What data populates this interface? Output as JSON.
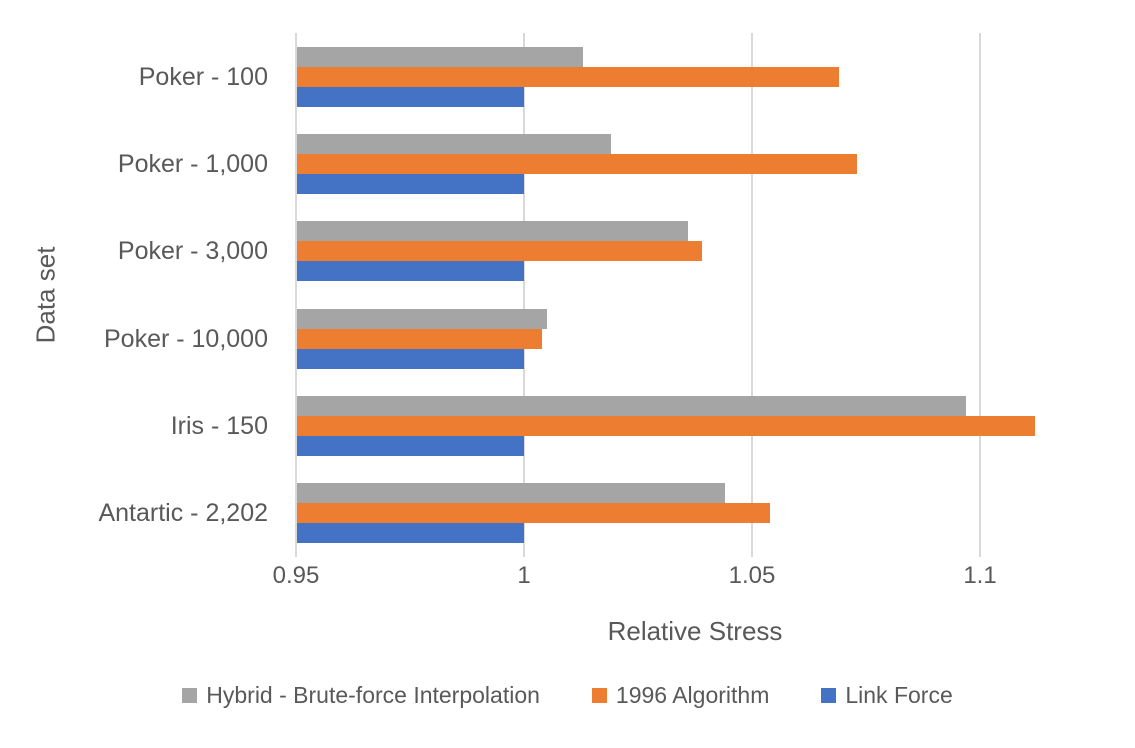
{
  "chart_data": {
    "type": "bar",
    "orientation": "horizontal",
    "xlabel": "Relative Stress",
    "ylabel": "Data set",
    "categories": [
      "Poker - 100",
      "Poker - 1,000",
      "Poker - 3,000",
      "Poker - 10,000",
      "Iris - 150",
      "Antartic - 2,202"
    ],
    "series": [
      {
        "name": "Hybrid - Brute-force Interpolation",
        "color": "#A5A5A5",
        "values": [
          1.013,
          1.019,
          1.036,
          1.005,
          1.097,
          1.044
        ]
      },
      {
        "name": "1996 Algorithm",
        "color": "#ED7D31",
        "values": [
          1.069,
          1.073,
          1.039,
          1.004,
          1.112,
          1.054
        ]
      },
      {
        "name": "Link Force",
        "color": "#4472C4",
        "values": [
          1.0,
          1.0,
          1.0,
          1.0,
          1.0,
          1.0
        ]
      }
    ],
    "xlim": [
      0.95,
      1.125
    ],
    "xticks": [
      {
        "value": 0.95,
        "label": "0.95"
      },
      {
        "value": 1.0,
        "label": "1"
      },
      {
        "value": 1.05,
        "label": "1.05"
      },
      {
        "value": 1.1,
        "label": "1.1"
      }
    ],
    "grid": true,
    "legend_position": "bottom",
    "text_color": "#595959",
    "gridline_color": "#D9D9D9",
    "background_color": "#FFFFFF"
  }
}
